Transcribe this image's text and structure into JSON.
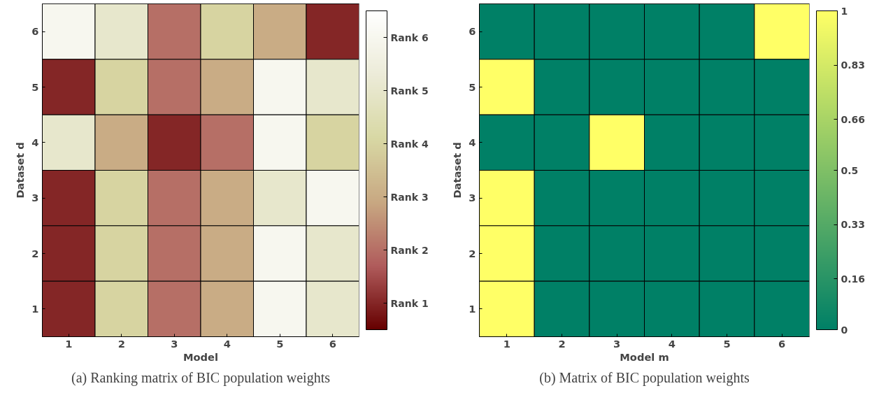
{
  "chart_data": [
    {
      "type": "heatmap",
      "xlabel": "Model",
      "ylabel": "Dataset d",
      "categories": [
        "1",
        "2",
        "3",
        "4",
        "5",
        "6"
      ],
      "y_categories": [
        "6",
        "5",
        "4",
        "3",
        "2",
        "1"
      ],
      "cells": [
        [
          6,
          5,
          2,
          4,
          3,
          1
        ],
        [
          1,
          4,
          2,
          3,
          6,
          5
        ],
        [
          5,
          3,
          1,
          2,
          6,
          4
        ],
        [
          1,
          4,
          2,
          3,
          5,
          6
        ],
        [
          1,
          4,
          2,
          3,
          6,
          5
        ],
        [
          1,
          4,
          2,
          3,
          6,
          5
        ]
      ],
      "clim": [
        0.5,
        6.5
      ],
      "cticks": [
        {
          "value": 1,
          "label": "Rank 1"
        },
        {
          "value": 2,
          "label": "Rank 2"
        },
        {
          "value": 3,
          "label": "Rank 3"
        },
        {
          "value": 4,
          "label": "Rank 4"
        },
        {
          "value": 5,
          "label": "Rank 5"
        },
        {
          "value": 6,
          "label": "Rank 6"
        }
      ],
      "annotations": [
        "(a) Ranking matrix of BIC population weights"
      ]
    },
    {
      "type": "heatmap",
      "xlabel": "Model m",
      "ylabel": "Dataset d",
      "categories": [
        "1",
        "2",
        "3",
        "4",
        "5",
        "6"
      ],
      "y_categories": [
        "6",
        "5",
        "4",
        "3",
        "2",
        "1"
      ],
      "cells": [
        [
          0,
          0,
          0,
          0,
          0,
          1
        ],
        [
          1,
          0,
          0,
          0,
          0,
          0
        ],
        [
          0,
          0,
          1,
          0,
          0,
          0
        ],
        [
          1,
          0,
          0,
          0,
          0,
          0
        ],
        [
          1,
          0,
          0,
          0,
          0,
          0
        ],
        [
          1,
          0,
          0,
          0,
          0,
          0
        ]
      ],
      "clim": [
        0,
        1
      ],
      "cticks": [
        0,
        0.16,
        0.33,
        0.5,
        0.66,
        0.83,
        1
      ],
      "annotations": [
        "(b) Matrix of BIC population weights"
      ]
    }
  ]
}
